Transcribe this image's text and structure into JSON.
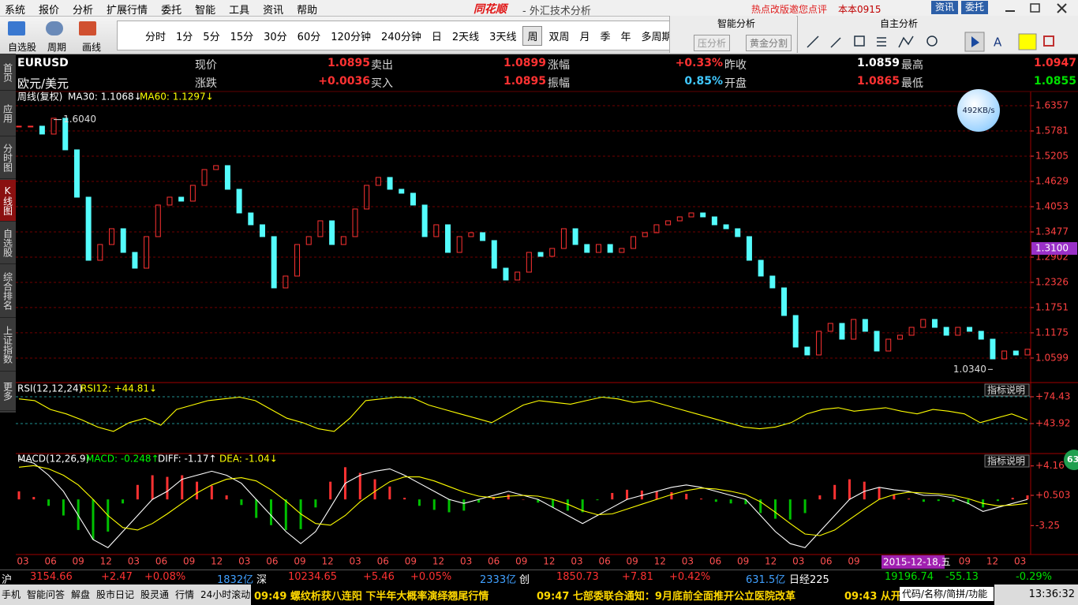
{
  "menu": [
    "系统",
    "报价",
    "分析",
    "扩展行情",
    "委托",
    "智能",
    "工具",
    "资讯",
    "帮助"
  ],
  "brand": "同花顺",
  "app_title": "- 外汇技术分析",
  "top_links": [
    "热点改版邀您点评",
    "本本0915"
  ],
  "top_buttons": [
    "资讯",
    "委托"
  ],
  "toolbar": [
    "自选股",
    "周期",
    "画线"
  ],
  "periods": [
    "分时",
    "1分",
    "5分",
    "15分",
    "30分",
    "60分",
    "120分钟",
    "240分钟",
    "日",
    "2天线",
    "3天线",
    "周",
    "双周",
    "月",
    "季",
    "年",
    "多周期"
  ],
  "smart_panel": {
    "title": "智能分析",
    "buttons": [
      "压分析",
      "黄金分割"
    ]
  },
  "self_panel": {
    "title": "自主分析"
  },
  "sidebar": [
    "首页",
    "应用",
    "分时图",
    "K线图",
    "自选股",
    "综合排名",
    "上证指数",
    "更多"
  ],
  "quote": {
    "symbol": "EURUSD",
    "name": "欧元/美元",
    "rows": [
      [
        {
          "label": "现价",
          "value": "1.0895",
          "color": "#ff3232"
        },
        {
          "label": "卖出",
          "value": "1.0899",
          "color": "#ff3232"
        },
        {
          "label": "涨幅",
          "value": "+0.33%",
          "color": "#ff3232"
        },
        {
          "label": "昨收",
          "value": "1.0859",
          "color": "#ffffff"
        },
        {
          "label": "最高",
          "value": "1.0947",
          "color": "#ff3232"
        }
      ],
      [
        {
          "label": "涨跌",
          "value": "+0.0036",
          "color": "#ff3232"
        },
        {
          "label": "买入",
          "value": "1.0895",
          "color": "#ff3232"
        },
        {
          "label": "振幅",
          "value": "0.85%",
          "color": "#40c8ff"
        },
        {
          "label": "开盘",
          "value": "1.0865",
          "color": "#ff3232"
        },
        {
          "label": "最低",
          "value": "1.0855",
          "color": "#00e000"
        }
      ]
    ]
  },
  "speed": "492KB/s",
  "badge": "63",
  "indicator_help": "指标说明",
  "ticker": [
    {
      "text": "沪",
      "color": "#ffffff"
    },
    {
      "text": "3154.66",
      "color": "#ff3232"
    },
    {
      "text": "+2.47",
      "color": "#ff3232"
    },
    {
      "text": "+0.08%",
      "color": "#ff3232"
    },
    {
      "text": "1832亿",
      "color": "#40a0ff"
    },
    {
      "text": "深",
      "color": "#ffffff"
    },
    {
      "text": "10234.65",
      "color": "#ff3232"
    },
    {
      "text": "+5.46",
      "color": "#ff3232"
    },
    {
      "text": "+0.05%",
      "color": "#ff3232"
    },
    {
      "text": "2333亿",
      "color": "#40a0ff"
    },
    {
      "text": "创",
      "color": "#ffffff"
    },
    {
      "text": "1850.73",
      "color": "#ff3232"
    },
    {
      "text": "+7.81",
      "color": "#ff3232"
    },
    {
      "text": "+0.42%",
      "color": "#ff3232"
    },
    {
      "text": "631.5亿",
      "color": "#40a0ff"
    },
    {
      "text": "日经225",
      "color": "#ffffff"
    },
    {
      "text": "19196.74",
      "color": "#00e000"
    },
    {
      "text": "-55.13",
      "color": "#00e000"
    },
    {
      "text": "-0.29%",
      "color": "#00e000"
    }
  ],
  "status": {
    "buttons": [
      "手机",
      "智能问答",
      "解盘",
      "股市日记",
      "股灵通",
      "行情",
      "24小时滚动"
    ],
    "news": [
      "09:49 螺纹析获八连阳 下半年大概率演绎翘尾行情",
      "09:47 七部委联合通知：9月底前全面推开公立医院改革",
      "09:43 从开"
    ],
    "search": "代码/名称/简拼/功能",
    "clock": "13:36:32"
  },
  "chart_data": [
    {
      "type": "candlestick",
      "title": "周线(复权)",
      "legend": [
        {
          "text": "MA30: 1.1068↓",
          "color": "#ffffff"
        },
        {
          "text": "MA60: 1.1297↓",
          "color": "#ffff00"
        }
      ],
      "categories": [
        "03",
        "06",
        "09",
        "12",
        "03",
        "06",
        "09",
        "12",
        "03",
        "06",
        "09",
        "12",
        "03",
        "06",
        "09",
        "12",
        "03",
        "06",
        "09",
        "12",
        "03",
        "06",
        "09",
        "12",
        "03",
        "06",
        "09",
        "12",
        "03",
        "06",
        "09",
        null,
        null,
        null,
        "09",
        "12",
        "03"
      ],
      "cursor_label": "2015-12-18,五",
      "close": [
        1.589,
        1.589,
        1.571,
        1.607,
        1.535,
        1.427,
        1.283,
        1.319,
        1.355,
        1.301,
        1.265,
        1.337,
        1.409,
        1.427,
        1.418,
        1.454,
        1.49,
        1.499,
        1.445,
        1.391,
        1.364,
        1.337,
        1.22,
        1.247,
        1.319,
        1.337,
        1.373,
        1.319,
        1.337,
        1.4,
        1.454,
        1.472,
        1.445,
        1.436,
        1.409,
        1.337,
        1.364,
        1.301,
        1.337,
        1.346,
        1.328,
        1.265,
        1.238,
        1.256,
        1.301,
        1.292,
        1.31,
        1.355,
        1.319,
        1.301,
        1.319,
        1.301,
        1.31,
        1.337,
        1.346,
        1.364,
        1.373,
        1.382,
        1.391,
        1.382,
        1.364,
        1.355,
        1.337,
        1.283,
        1.247,
        1.22,
        1.157,
        1.085,
        1.067,
        1.121,
        1.139,
        1.103,
        1.148,
        1.121,
        1.076,
        1.103,
        1.112,
        1.13,
        1.148,
        1.13,
        1.112,
        1.13,
        1.121,
        1.103,
        1.058,
        1.076,
        1.067,
        1.08
      ],
      "up_color": "#ff3232",
      "down_color": "#54fcfc",
      "ylim": [
        1.004,
        1.6465
      ],
      "yticks": [
        1.6357,
        1.5781,
        1.5205,
        1.4629,
        1.4053,
        1.3477,
        1.2902,
        1.2326,
        1.1751,
        1.1175,
        1.0599
      ],
      "grid": true,
      "annotations": [
        {
          "value": 1.604,
          "label": "1.6040"
        },
        {
          "value": 1.034,
          "label": "1.0340"
        }
      ],
      "last_price": {
        "value": 1.31,
        "label": "1.3100"
      }
    },
    {
      "type": "line",
      "title": "RSI(12,12,24)",
      "legend": [
        {
          "text": "RSI12: +44.81↓",
          "color": "#ffff00"
        }
      ],
      "values": [
        72,
        70,
        60,
        55,
        48,
        40,
        35,
        45,
        50,
        42,
        60,
        65,
        70,
        72,
        74,
        70,
        60,
        50,
        45,
        38,
        35,
        50,
        70,
        72,
        74,
        73,
        65,
        60,
        55,
        50,
        45,
        55,
        65,
        70,
        68,
        66,
        70,
        74,
        72,
        68,
        70,
        65,
        60,
        55,
        50,
        45,
        40,
        38,
        40,
        45,
        55,
        60,
        62,
        58,
        60,
        62,
        58,
        55,
        60,
        58,
        55,
        45,
        50,
        55,
        48
      ],
      "color": "#ffff00",
      "ylim": [
        9.8,
        89.7
      ],
      "yticks": [
        {
          "value": 74.43,
          "label": "+74.43"
        },
        {
          "value": 43.92,
          "label": "+43.92"
        }
      ],
      "grid": true
    },
    {
      "type": "macd",
      "title": "MACD(12,26,9)",
      "legend": [
        {
          "text": "MACD: -0.248↑",
          "color": "#00ff00"
        },
        {
          "text": "DIFF: -1.17↑",
          "color": "#ffffff"
        },
        {
          "text": "DEA: -1.04↓",
          "color": "#ffff00"
        }
      ],
      "series": [
        {
          "kind": "bar",
          "up_color": "#ff3232",
          "down_color": "#00c000",
          "values": [
            1,
            0.3,
            -0.8,
            -2,
            -3.8,
            -5,
            -4,
            -0.5,
            1.8,
            3,
            2.8,
            3,
            2.2,
            1.7,
            0.5,
            -0.7,
            -2.3,
            -3.2,
            -3.8,
            -3.7,
            -1,
            2.2,
            4,
            3.3,
            2.5,
            1.6,
            0.2,
            -0.8,
            -1.3,
            -1.6,
            -1.4,
            -0.4,
            0.3,
            0.6,
            0,
            -0.4,
            -1,
            -1.4,
            -1.6,
            -0.1,
            0.8,
            1.2,
            1.1,
            1,
            0.9,
            0.7,
            0.1,
            -0.3,
            -0.5,
            -0.6,
            -1.7,
            -2.4,
            -2.5,
            -1.7,
            0.5,
            1.8,
            2.5,
            2.2,
            1.5,
            0.6,
            0.1,
            -0.3,
            -0.2,
            -0.3,
            -0.6,
            -1,
            -0.2,
            0.2,
            0.5
          ]
        },
        {
          "kind": "line",
          "color": "#ffffff",
          "values": [
            5,
            4.5,
            3,
            1,
            -2,
            -5,
            -6,
            -4,
            -2,
            0,
            1,
            2.5,
            3,
            3.5,
            3,
            2,
            0,
            -2,
            -4,
            -5.5,
            -4,
            -1,
            2,
            3,
            3.5,
            3.8,
            3,
            2,
            1,
            0,
            -0.5,
            0,
            0.5,
            1,
            0.5,
            0,
            -1,
            -2,
            -3,
            -2,
            -1,
            0,
            0.5,
            1,
            1.5,
            1.8,
            1.5,
            1,
            0.5,
            0,
            -2,
            -4,
            -5.5,
            -6,
            -4,
            -2,
            0,
            1,
            1.5,
            1.2,
            1,
            0.5,
            0.5,
            0.2,
            -0.5,
            -1.5,
            -1,
            -0.5,
            0
          ]
        },
        {
          "kind": "line",
          "color": "#ffff00",
          "values": [
            4,
            4.2,
            3.8,
            3,
            1.8,
            0,
            -2,
            -3.5,
            -3.8,
            -3,
            -1.8,
            -0.5,
            0.8,
            1.8,
            2.5,
            2.7,
            2.3,
            1.2,
            -0.2,
            -1.8,
            -3,
            -3.2,
            -2,
            -0.3,
            1,
            2.2,
            2.8,
            2.8,
            2.3,
            1.6,
            0.9,
            0.4,
            0.2,
            0.4,
            0.5,
            0.4,
            0,
            -0.6,
            -1.4,
            -1.9,
            -1.8,
            -1.2,
            -0.6,
            0,
            0.6,
            1.1,
            1.4,
            1.3,
            1,
            0.6,
            -0.3,
            -1.6,
            -3,
            -4.3,
            -4.5,
            -3.8,
            -2.5,
            -1.2,
            0,
            0.6,
            0.9,
            0.8,
            0.7,
            0.5,
            0.1,
            -0.5,
            -0.8,
            -0.7,
            -0.5
          ]
        }
      ],
      "ylim": [
        -6.85,
        5.6
      ],
      "yticks": [
        {
          "value": 4.16,
          "label": "+4.16"
        },
        {
          "value": 0.503,
          "label": "+0.503"
        },
        -3.25
      ]
    }
  ]
}
